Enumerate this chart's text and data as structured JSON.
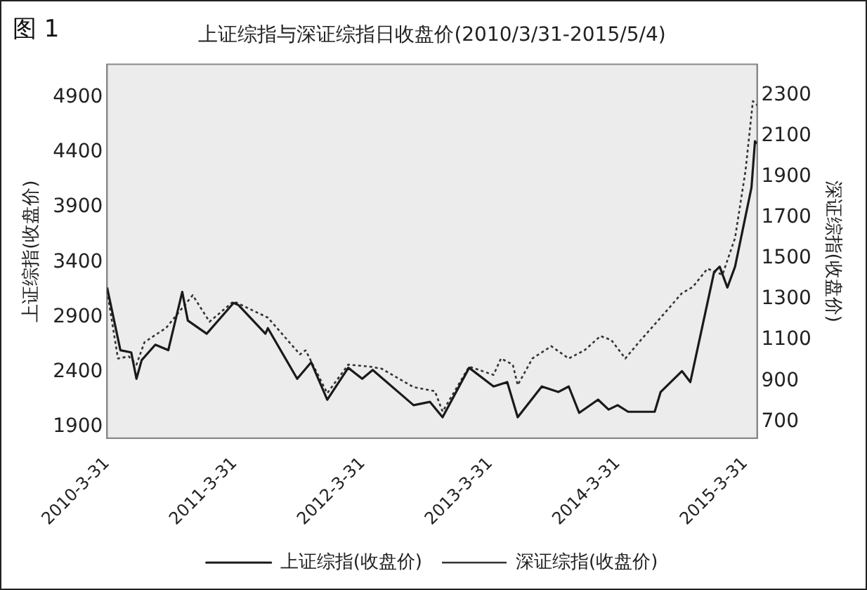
{
  "chart_data": {
    "type": "line",
    "title": "上证综指与深证综指日收盘价(2010/3/31-2015/5/4)",
    "ylabel": "上证综指(收盘价)",
    "y2label": "深证综指(收盘价)",
    "annotations": [
      "图 1"
    ],
    "xlim": [
      "2010-03-31",
      "2015-05-04"
    ],
    "xticks": [
      {
        "value": "2010-03-31",
        "label": "2010-3-31"
      },
      {
        "value": "2011-03-31",
        "label": "2011-3-31"
      },
      {
        "value": "2012-03-31",
        "label": "2012-3-31"
      },
      {
        "value": "2013-03-31",
        "label": "2013-3-31"
      },
      {
        "value": "2014-03-31",
        "label": "2014-3-31"
      },
      {
        "value": "2015-03-31",
        "label": "2015-3-31"
      }
    ],
    "ylim": [
      1800,
      5200
    ],
    "yticks": [
      1900,
      2400,
      2900,
      3400,
      3900,
      4400,
      4900
    ],
    "y2lim": [
      620,
      2450
    ],
    "y2ticks": [
      700,
      900,
      1100,
      1300,
      1500,
      1700,
      1900,
      2100,
      2300
    ],
    "grid": false,
    "legend": "bottom",
    "marker": "none",
    "series": [
      {
        "name": "上证综指(收盘价)",
        "color": "#1a1a1a",
        "line_style": "solid",
        "x": [
          "2010-03-31",
          "2010-05-08",
          "2010-06-08",
          "2010-06-23",
          "2010-07-08",
          "2010-08-16",
          "2010-09-22",
          "2010-11-01",
          "2010-11-17",
          "2011-01-10",
          "2011-03-28",
          "2011-04-11",
          "2011-06-27",
          "2011-07-04",
          "2011-09-26",
          "2011-11-05",
          "2011-12-21",
          "2012-02-19",
          "2012-03-30",
          "2012-04-29",
          "2012-08-24",
          "2012-10-10",
          "2012-11-15",
          "2013-01-30",
          "2013-04-10",
          "2013-05-19",
          "2013-06-18",
          "2013-08-26",
          "2013-10-12",
          "2013-11-11",
          "2013-12-11",
          "2014-02-03",
          "2014-03-05",
          "2014-03-31",
          "2014-04-30",
          "2014-07-15",
          "2014-08-01",
          "2014-10-01",
          "2014-10-25",
          "2015-01-01",
          "2015-01-17",
          "2015-02-08",
          "2015-03-02",
          "2015-04-18",
          "2015-04-28",
          "2015-05-04"
        ],
        "values": [
          3170,
          2600,
          2580,
          2340,
          2510,
          2650,
          2600,
          3130,
          2870,
          2750,
          3030,
          3010,
          2750,
          2800,
          2340,
          2490,
          2150,
          2440,
          2340,
          2420,
          2100,
          2130,
          1990,
          2440,
          2270,
          2310,
          1990,
          2270,
          2220,
          2270,
          2030,
          2150,
          2060,
          2100,
          2040,
          2040,
          2220,
          2410,
          2310,
          3310,
          3360,
          3170,
          3360,
          4080,
          4500,
          4480
        ]
      },
      {
        "name": "深证综指(收盘价)",
        "color": "#333333",
        "line_style": "dotted",
        "axis": "y2",
        "x": [
          "2010-03-31",
          "2010-05-01",
          "2010-06-01",
          "2010-06-23",
          "2010-07-16",
          "2010-09-16",
          "2010-12-01",
          "2011-01-18",
          "2011-03-28",
          "2011-07-04",
          "2011-10-04",
          "2011-10-20",
          "2011-12-21",
          "2012-02-19",
          "2012-04-21",
          "2012-05-25",
          "2012-08-24",
          "2012-10-24",
          "2012-11-15",
          "2013-01-30",
          "2013-04-10",
          "2013-05-01",
          "2013-06-04",
          "2013-06-18",
          "2013-07-30",
          "2013-09-22",
          "2013-11-11",
          "2013-12-26",
          "2014-02-10",
          "2014-03-13",
          "2014-04-22",
          "2014-05-31",
          "2014-08-01",
          "2014-10-01",
          "2014-11-01",
          "2014-12-13",
          "2015-01-25",
          "2015-03-02",
          "2015-04-01",
          "2015-04-22",
          "2015-05-04"
        ],
        "values": [
          1340,
          1010,
          1020,
          980,
          1090,
          1160,
          1320,
          1190,
          1290,
          1210,
          1030,
          1050,
          840,
          980,
          970,
          960,
          870,
          850,
          750,
          970,
          930,
          1010,
          980,
          880,
          1010,
          1070,
          1010,
          1050,
          1120,
          1100,
          1010,
          1090,
          1210,
          1330,
          1360,
          1450,
          1420,
          1600,
          1930,
          2270,
          2250
        ]
      }
    ]
  }
}
